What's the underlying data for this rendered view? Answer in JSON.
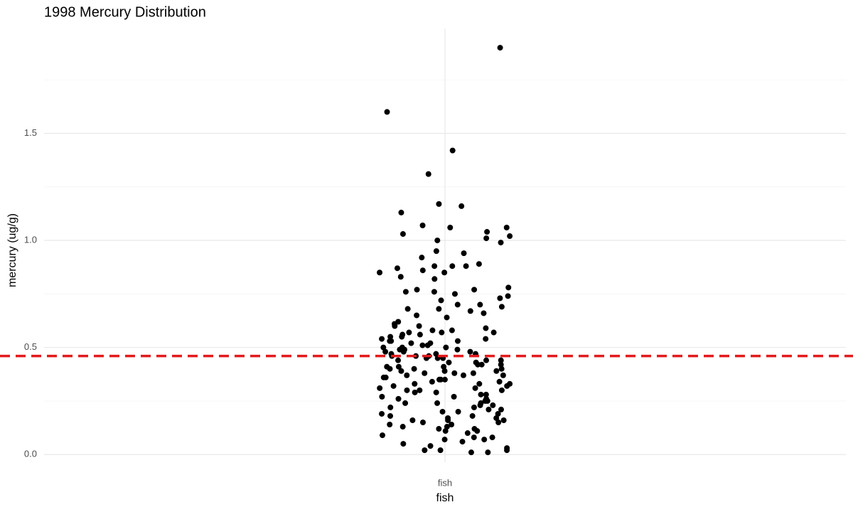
{
  "chart_data": {
    "type": "strip",
    "title": "1998 Mercury Distribution",
    "x_label": "fish",
    "y_label": "mercury (ug/g)",
    "categories": [
      "fish"
    ],
    "ylim": [
      -0.036,
      1.99
    ],
    "yticks": [
      {
        "value": 0,
        "label": "0.0"
      },
      {
        "value": 0.5,
        "label": "0.5"
      },
      {
        "value": 1,
        "label": "1.0"
      },
      {
        "value": 1.5,
        "label": "1.5"
      }
    ],
    "minor_yticks": [
      0.25,
      0.75,
      1.25,
      1.75
    ],
    "grid": true,
    "color": "#000000",
    "hline": {
      "value": 0.46,
      "color": "#e31a1c"
    },
    "values": [
      1.9,
      1.6,
      1.42,
      1.31,
      1.17,
      1.16,
      1.13,
      1.07,
      1.06,
      1.06,
      1.04,
      1.03,
      1.02,
      1.01,
      1.0,
      0.99,
      0.95,
      0.94,
      0.92,
      0.89,
      0.88,
      0.88,
      0.88,
      0.87,
      0.86,
      0.85,
      0.85,
      0.83,
      0.82,
      0.78,
      0.77,
      0.77,
      0.76,
      0.76,
      0.75,
      0.74,
      0.73,
      0.72,
      0.7,
      0.7,
      0.69,
      0.68,
      0.68,
      0.67,
      0.66,
      0.65,
      0.64,
      0.62,
      0.61,
      0.6,
      0.6,
      0.59,
      0.58,
      0.58,
      0.57,
      0.57,
      0.57,
      0.56,
      0.56,
      0.55,
      0.55,
      0.54,
      0.54,
      0.53,
      0.53,
      0.53,
      0.52,
      0.52,
      0.51,
      0.51,
      0.5,
      0.5,
      0.5,
      0.49,
      0.49,
      0.49,
      0.48,
      0.48,
      0.48,
      0.47,
      0.47,
      0.47,
      0.46,
      0.46,
      0.46,
      0.45,
      0.45,
      0.45,
      0.44,
      0.44,
      0.44,
      0.43,
      0.43,
      0.42,
      0.42,
      0.42,
      0.41,
      0.41,
      0.41,
      0.4,
      0.4,
      0.4,
      0.39,
      0.39,
      0.39,
      0.38,
      0.38,
      0.38,
      0.37,
      0.37,
      0.37,
      0.36,
      0.36,
      0.35,
      0.35,
      0.35,
      0.34,
      0.34,
      0.33,
      0.33,
      0.33,
      0.32,
      0.32,
      0.31,
      0.31,
      0.3,
      0.3,
      0.3,
      0.29,
      0.29,
      0.28,
      0.28,
      0.27,
      0.27,
      0.26,
      0.26,
      0.25,
      0.25,
      0.24,
      0.24,
      0.24,
      0.23,
      0.23,
      0.22,
      0.22,
      0.21,
      0.21,
      0.2,
      0.2,
      0.19,
      0.19,
      0.18,
      0.18,
      0.17,
      0.17,
      0.16,
      0.16,
      0.16,
      0.15,
      0.15,
      0.14,
      0.14,
      0.13,
      0.13,
      0.12,
      0.12,
      0.11,
      0.11,
      0.1,
      0.09,
      0.08,
      0.08,
      0.07,
      0.07,
      0.06,
      0.05,
      0.04,
      0.03,
      0.02,
      0.02,
      0.02,
      0.01,
      0.01
    ]
  }
}
